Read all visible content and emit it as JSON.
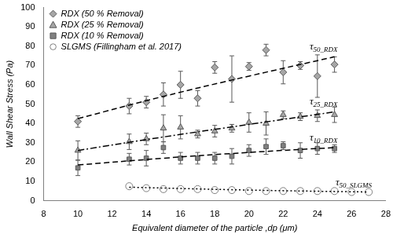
{
  "chart_data": {
    "type": "scatter",
    "x_label": "Equivalent diameter of the particle ,dp (μm)",
    "y_label": "Wall Shear Stress (Pa)",
    "xlim": [
      8,
      28
    ],
    "xticks": [
      8,
      10,
      12,
      14,
      16,
      18,
      20,
      22,
      24,
      26,
      28
    ],
    "ylim": [
      0,
      100
    ],
    "yticks": [
      0,
      10,
      20,
      30,
      40,
      50,
      60,
      70,
      80,
      90,
      100
    ],
    "grid": false,
    "legend": "upper left",
    "series": [
      {
        "name": "RDX (50 % Removal)",
        "color": "#a6a6a6",
        "marker": "diamond",
        "x": [
          10,
          13,
          14,
          15,
          16,
          17,
          18,
          19,
          20,
          21,
          22,
          23,
          24,
          25
        ],
        "values": [
          41,
          49,
          51,
          55,
          60,
          53,
          69,
          63,
          69.5,
          78,
          66.5,
          70,
          64.5,
          70.5
        ],
        "errors": [
          3,
          4,
          3,
          6,
          7,
          4,
          3,
          12,
          2,
          3,
          6,
          2,
          11,
          4
        ],
        "fit": {
          "label": "τ50_RDX",
          "line_style": "dashed",
          "x": [
            10,
            15,
            20,
            25
          ],
          "values": [
            42.5,
            54,
            64.5,
            74.5
          ]
        }
      },
      {
        "name": "RDX (25 % Removal)",
        "color": "#a6a6a6",
        "marker": "triangle",
        "x": [
          10,
          13,
          14,
          15,
          16,
          17,
          18,
          19,
          20,
          21,
          22,
          23,
          24,
          25
        ],
        "values": [
          26,
          30.5,
          32,
          37.5,
          38,
          34.5,
          36,
          37.5,
          40.5,
          40,
          44.5,
          43.5,
          44,
          44.5
        ],
        "errors": [
          5,
          4,
          3,
          7,
          6,
          2,
          3,
          2,
          5,
          6,
          2,
          2,
          3,
          4
        ],
        "fit": {
          "label": "τ25_RDX",
          "line_style": "dashdot",
          "x": [
            10,
            15,
            20,
            25
          ],
          "values": [
            26,
            33,
            39.5,
            46
          ]
        }
      },
      {
        "name": "RDX (10 % Removal)",
        "color": "#808080",
        "marker": "square",
        "x": [
          10,
          13,
          14,
          15,
          16,
          17,
          18,
          19,
          20,
          21,
          22,
          23,
          24,
          25
        ],
        "values": [
          17,
          21.5,
          22,
          27.5,
          22,
          22,
          22,
          23,
          26,
          28,
          28.5,
          26,
          27,
          27
        ],
        "errors": [
          4,
          3,
          4,
          3,
          3,
          3,
          3,
          4,
          3,
          4,
          2,
          4,
          3,
          2
        ],
        "fit": {
          "label": "τ10_RDX",
          "line_style": "dashed",
          "x": [
            10,
            15,
            20,
            25
          ],
          "values": [
            18.5,
            22,
            25,
            27.5
          ]
        }
      },
      {
        "name": "SLGMS (Fillingham et al. 2017)",
        "color": "#7f7f7f",
        "marker": "open_circle",
        "x": [
          13,
          14,
          15,
          16,
          17,
          18,
          19,
          20,
          21,
          22,
          23,
          24,
          25,
          26,
          27
        ],
        "values": [
          7.5,
          6.5,
          6,
          6,
          6,
          5.5,
          5.5,
          5,
          5,
          5,
          5,
          5,
          5,
          4.5,
          4.5
        ],
        "errors": [
          1,
          0.5,
          0.5,
          0.5,
          0.5,
          0.5,
          0.5,
          0.5,
          0.5,
          0.5,
          0.5,
          0.5,
          0.5,
          0.5,
          0.5
        ],
        "fit": {
          "label": "τ50_SLGMS",
          "line_style": "dotted",
          "x": [
            13,
            20,
            27
          ],
          "values": [
            7,
            5.5,
            4.5
          ]
        }
      }
    ]
  }
}
